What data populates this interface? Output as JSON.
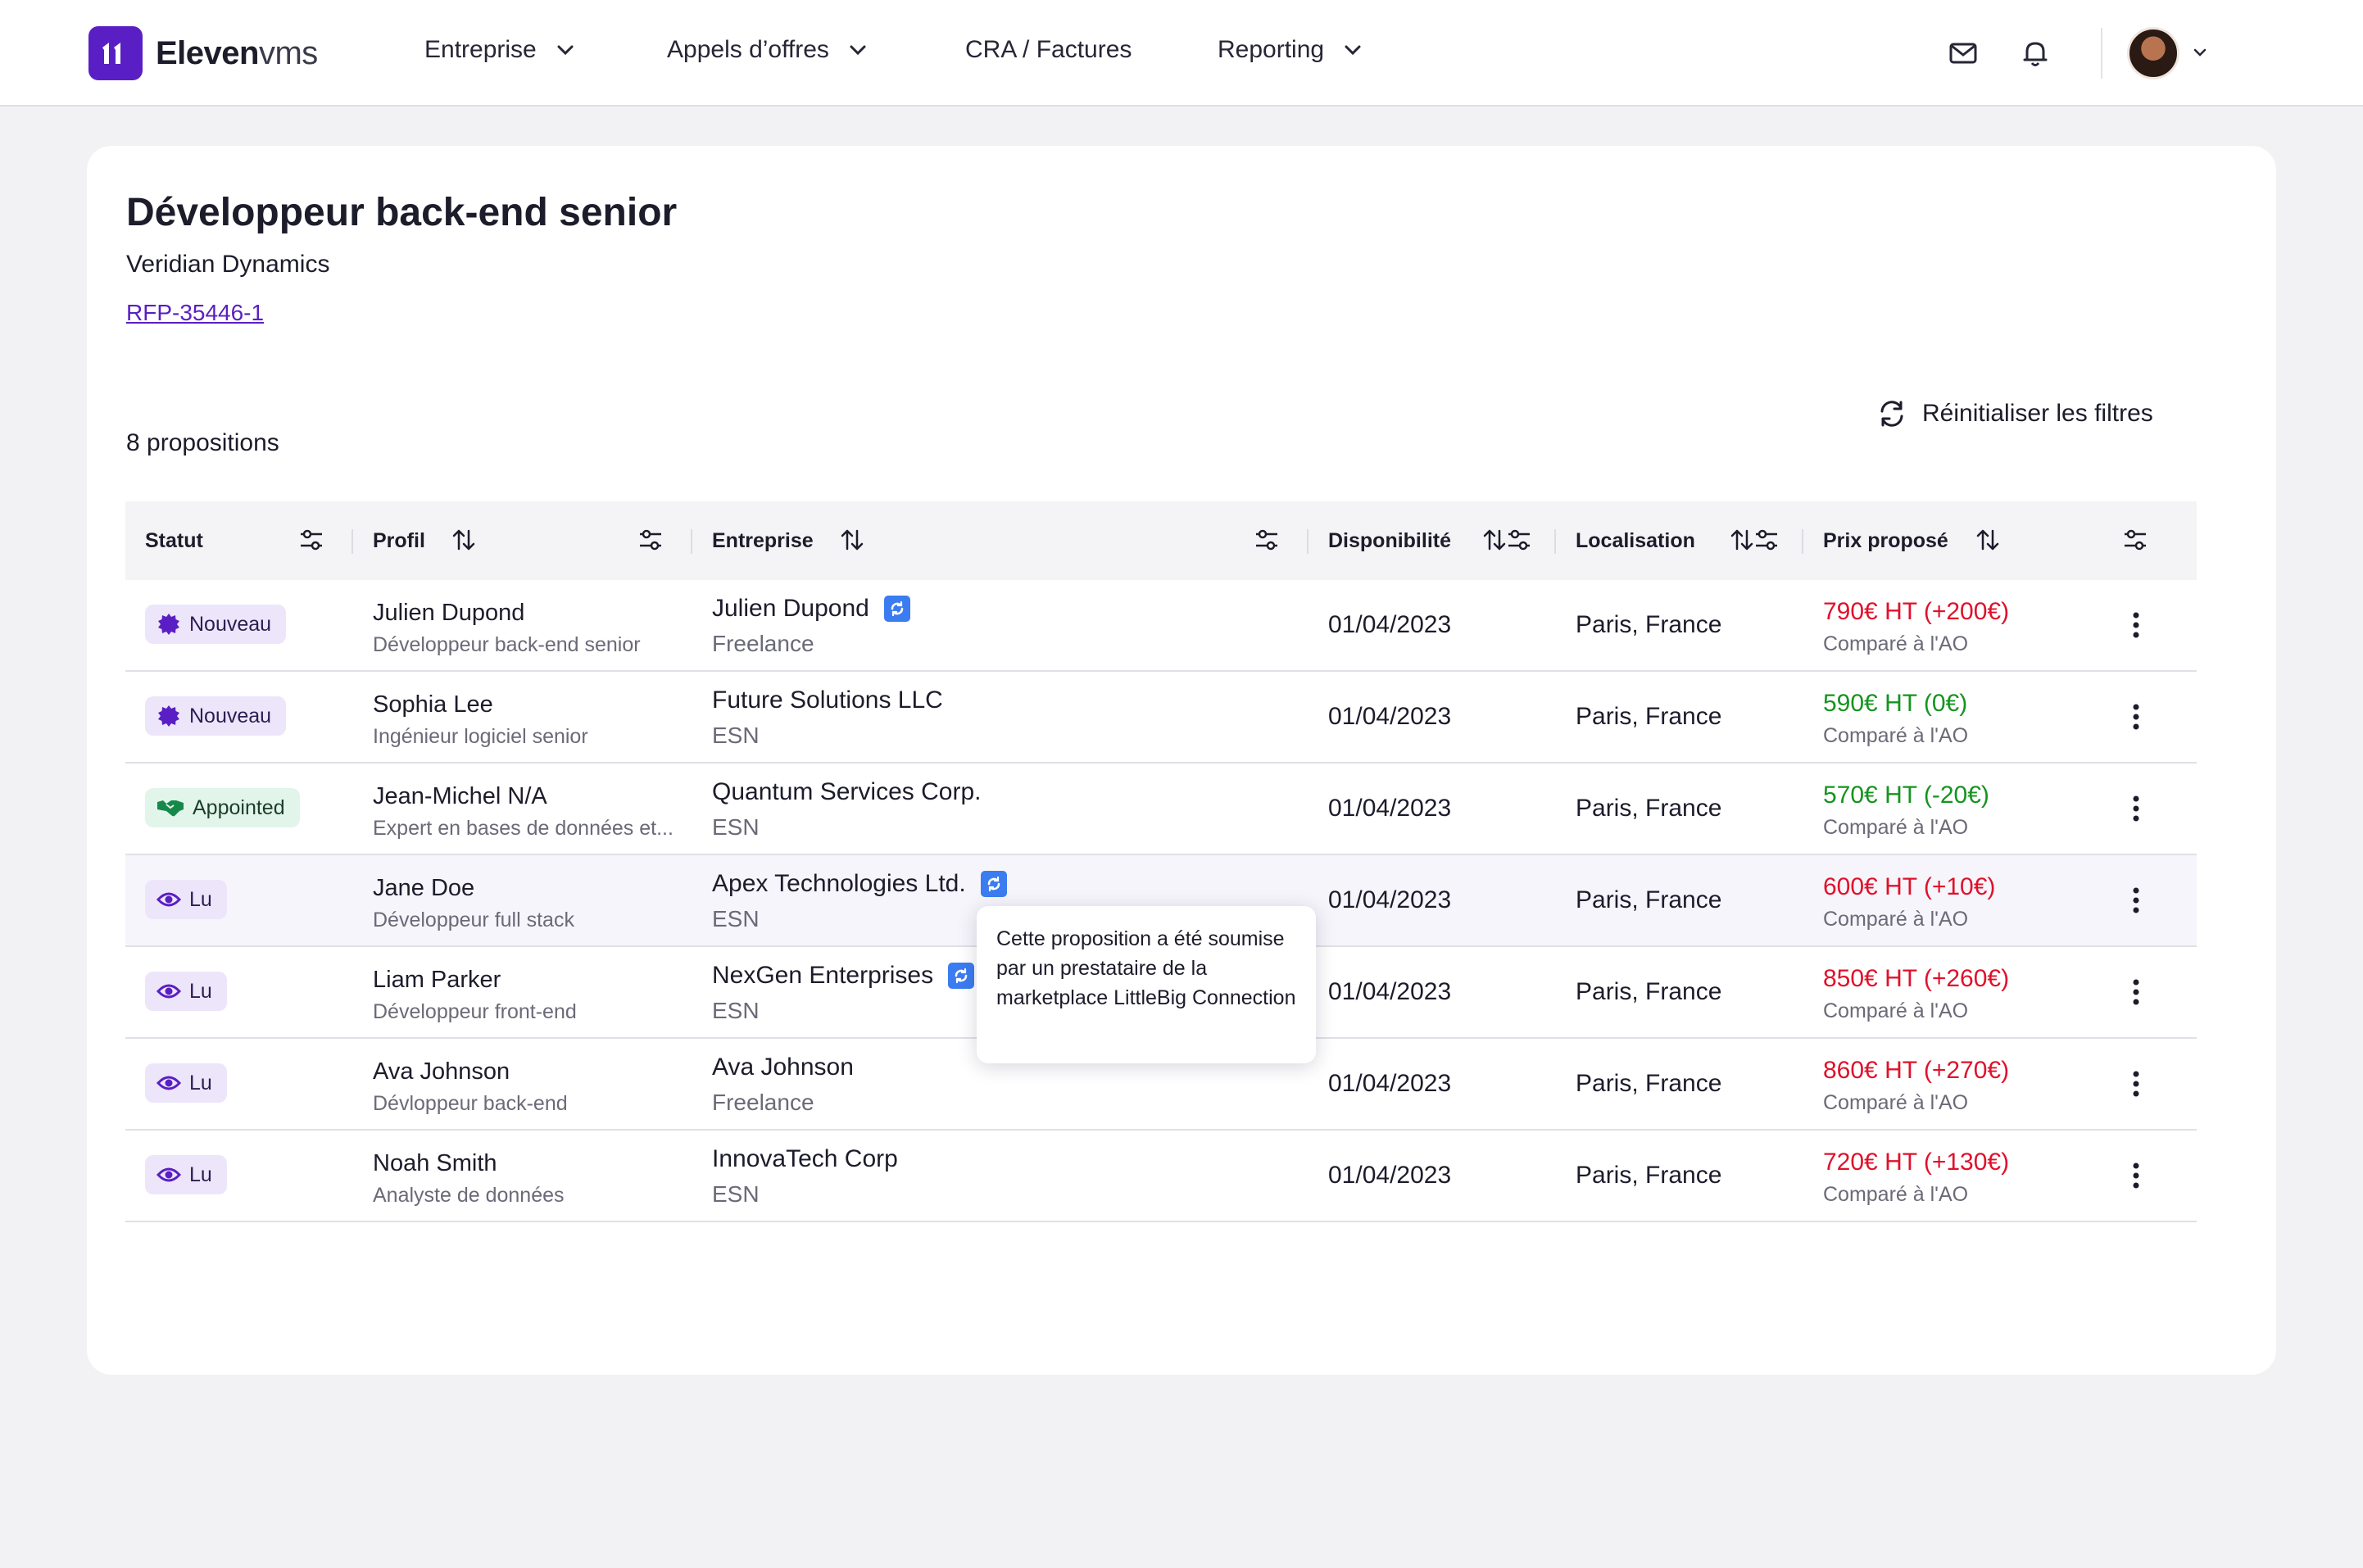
{
  "app": {
    "logo_bold": "Eleven",
    "logo_light": "vms"
  },
  "nav": {
    "items": [
      {
        "label": "Entreprise",
        "has_dropdown": true
      },
      {
        "label": "Appels d’offres",
        "has_dropdown": true
      },
      {
        "label": "CRA / Factures",
        "has_dropdown": false
      },
      {
        "label": "Reporting",
        "has_dropdown": true
      }
    ],
    "icons": [
      "mail-icon",
      "bell-icon",
      "avatar",
      "chevron-down-icon"
    ]
  },
  "page": {
    "title": "Développeur back-end senior",
    "company": "Veridian Dynamics",
    "rfp_link": "RFP-35446-1",
    "count_label": "8 propositions",
    "reset_label": "Réinitialiser les filtres"
  },
  "table": {
    "columns": [
      "Statut",
      "Profil",
      "Entreprise",
      "Disponibilité",
      "Localisation",
      "Prix proposé"
    ],
    "rows": [
      {
        "status": "Nouveau",
        "status_type": "new",
        "name": "Julien Dupond",
        "role": "Développeur back-end senior",
        "company": "Julien Dupond",
        "littlebig": true,
        "company_type": "Freelance",
        "date": "01/04/2023",
        "location": "Paris, France",
        "price": "790€ HT (+200€)",
        "price_color": "red",
        "compare": "Comparé à l'AO"
      },
      {
        "status": "Nouveau",
        "status_type": "new",
        "name": "Sophia Lee",
        "role": "Ingénieur logiciel senior",
        "company": "Future Solutions LLC",
        "littlebig": false,
        "company_type": "ESN",
        "date": "01/04/2023",
        "location": "Paris, France",
        "price": "590€ HT (0€)",
        "price_color": "green",
        "compare": "Comparé à l'AO"
      },
      {
        "status": "Appointed",
        "status_type": "appointed",
        "name": "Jean-Michel N/A",
        "role": "Expert en bases de données et...",
        "company": "Quantum Services Corp.",
        "littlebig": false,
        "company_type": "ESN",
        "date": "01/04/2023",
        "location": "Paris, France",
        "price": "570€ HT (-20€)",
        "price_color": "green",
        "compare": "Comparé à l'AO"
      },
      {
        "status": "Lu",
        "status_type": "read",
        "name": "Jane Doe",
        "role": "Développeur full stack",
        "company": "Apex Technologies Ltd.",
        "littlebig": true,
        "company_type": "ESN",
        "date": "01/04/2023",
        "location": "Paris, France",
        "price": "600€ HT (+10€)",
        "price_color": "red",
        "compare": "Comparé à l'AO"
      },
      {
        "status": "Lu",
        "status_type": "read",
        "name": "Liam Parker",
        "role": "Développeur front-end",
        "company": "NexGen Enterprises",
        "littlebig": true,
        "company_type": "ESN",
        "date": "01/04/2023",
        "location": "Paris, France",
        "price": "850€ HT (+260€)",
        "price_color": "red",
        "compare": "Comparé à l'AO"
      },
      {
        "status": "Lu",
        "status_type": "read",
        "name": "Ava Johnson",
        "role": "Dévloppeur back-end",
        "company": "Ava Johnson",
        "littlebig": false,
        "company_type": "Freelance",
        "date": "01/04/2023",
        "location": "Paris, France",
        "price": "860€ HT (+270€)",
        "price_color": "red",
        "compare": "Comparé à l'AO"
      },
      {
        "status": "Lu",
        "status_type": "read",
        "name": "Noah Smith",
        "role": "Analyste de données",
        "company": "InnovaTech Corp",
        "littlebig": false,
        "company_type": "ESN",
        "date": "01/04/2023",
        "location": "Paris, France",
        "price": "720€ HT (+130€)",
        "price_color": "red",
        "compare": "Comparé à l'AO"
      }
    ]
  },
  "tooltip": {
    "text": "Cette proposition a été soumise par un prestataire de la marketplace LittleBig Connection"
  },
  "colors": {
    "brand": "#5a1fc4",
    "price_up": "#e0112b",
    "price_ok": "#15941f",
    "littlebig": "#3b7cf0"
  }
}
